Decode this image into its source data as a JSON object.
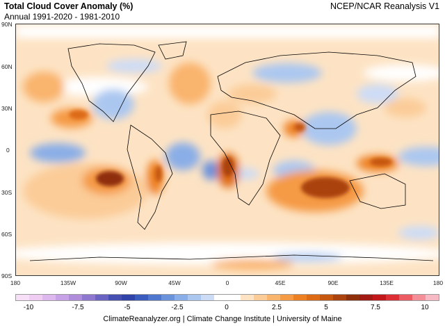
{
  "header": {
    "title": "Total Cloud Cover Anomaly (%)",
    "subtitle": "Annual 1991-2020 - 1981-2010",
    "source": "NCEP/NCAR Reanalysis V1"
  },
  "map": {
    "lat_labels": [
      "90N",
      "60N",
      "30N",
      "0",
      "30S",
      "60S",
      "90S"
    ],
    "lon_labels": [
      "180",
      "135W",
      "90W",
      "45W",
      "0",
      "45E",
      "90E",
      "135E",
      "180"
    ]
  },
  "colorbar": {
    "tick_labels": [
      "-10",
      "-7.5",
      "-5",
      "-2.5",
      "0",
      "2.5",
      "5",
      "7.5",
      "10"
    ],
    "colors": [
      "#f7dff7",
      "#efcdf3",
      "#dcb8ee",
      "#c8a2e6",
      "#b08ddb",
      "#8e78cf",
      "#6a63c2",
      "#4650b3",
      "#2f43a8",
      "#3a5cbf",
      "#4f77cf",
      "#6b93dc",
      "#8aaee7",
      "#abc7f0",
      "#cddcf6",
      "#ffffff",
      "#ffffff",
      "#fde3c4",
      "#fbcc98",
      "#f9b46d",
      "#f59a45",
      "#ee8024",
      "#dd6a14",
      "#c5570f",
      "#aa430d",
      "#8e2f0c",
      "#a11a14",
      "#c2181c",
      "#dc2e34",
      "#ec5a62",
      "#f48f98",
      "#f7b9c3"
    ],
    "missing_ticks": []
  },
  "footer": {
    "credit": "ClimateReanalyzer.org | Climate Change Institute | University of Maine"
  }
}
